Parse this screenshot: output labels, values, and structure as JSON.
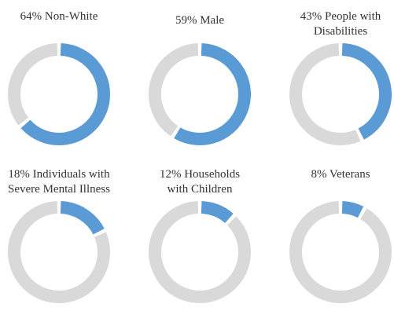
{
  "chart_data": {
    "type": "pie",
    "subtype": "donut-grid",
    "colors": {
      "filled": "#5b9bd5",
      "remainder": "#d9d9d9"
    },
    "charts": [
      {
        "title": [
          "64% Non-White"
        ],
        "value": 64
      },
      {
        "title": [
          "59% Male"
        ],
        "value": 59
      },
      {
        "title": [
          "43% People with",
          "Disabilities"
        ],
        "value": 43
      },
      {
        "title": [
          "18% Individuals with",
          "Severe Mental Illness"
        ],
        "value": 18
      },
      {
        "title": [
          "12% Households",
          "with Children"
        ],
        "value": 12
      },
      {
        "title": [
          "8% Veterans"
        ],
        "value": 8
      }
    ]
  }
}
